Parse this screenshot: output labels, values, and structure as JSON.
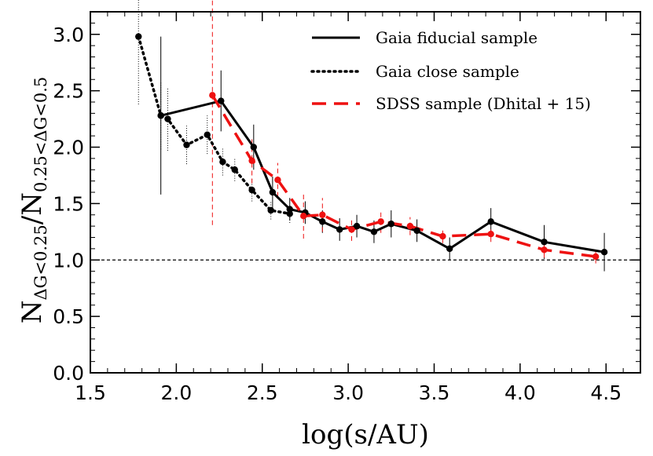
{
  "chart_data": {
    "type": "line",
    "xlabel": "log(s/AU)",
    "ylabel": "N_{ΔG<0.25} / N_{0.25<ΔG<0.5}",
    "ylabel_parts": {
      "n1": "N",
      "sub1": "ΔG<0.25",
      "slash": "/",
      "n2": "N",
      "sub2": "0.25<ΔG<0.5"
    },
    "xlim": [
      1.5,
      4.7
    ],
    "ylim": [
      0.0,
      3.2
    ],
    "x_ticks": [
      1.5,
      2.0,
      2.5,
      3.0,
      3.5,
      4.0,
      4.5
    ],
    "x_tick_labels": [
      "1.5",
      "2.0",
      "2.5",
      "3.0",
      "3.5",
      "4.0",
      "4.5"
    ],
    "y_ticks": [
      0.0,
      0.5,
      1.0,
      1.5,
      2.0,
      2.5,
      3.0
    ],
    "y_tick_labels": [
      "0.0",
      "0.5",
      "1.0",
      "1.5",
      "2.0",
      "2.5",
      "3.0"
    ],
    "reference_line": {
      "y": 1.0,
      "style": "dashed",
      "color": "#000000"
    },
    "legend_position": "top-right",
    "series": [
      {
        "name": "Gaia fiducial sample",
        "color": "#000000",
        "dash": "solid",
        "error_dash": "solid",
        "x": [
          1.91,
          2.26,
          2.45,
          2.56,
          2.66,
          2.75,
          2.85,
          2.95,
          3.05,
          3.15,
          3.25,
          3.4,
          3.59,
          3.83,
          4.14,
          4.49
        ],
        "y": [
          2.28,
          2.41,
          2.0,
          1.6,
          1.45,
          1.42,
          1.34,
          1.27,
          1.3,
          1.25,
          1.32,
          1.26,
          1.1,
          1.34,
          1.16,
          1.07
        ],
        "err": [
          0.7,
          0.27,
          0.2,
          0.14,
          0.1,
          0.1,
          0.1,
          0.1,
          0.1,
          0.1,
          0.12,
          0.1,
          0.1,
          0.12,
          0.15,
          0.17
        ]
      },
      {
        "name": "Gaia close sample",
        "color": "#000000",
        "dash": "dotted",
        "error_dash": "dotted",
        "x": [
          1.78,
          1.91,
          1.95,
          2.06,
          2.18,
          2.27,
          2.34,
          2.44,
          2.55,
          2.66
        ],
        "y": [
          2.98,
          2.28,
          2.25,
          2.02,
          2.11,
          1.87,
          1.8,
          1.62,
          1.44,
          1.41
        ],
        "err": [
          0.6,
          0.3,
          0.28,
          0.17,
          0.17,
          0.12,
          0.1,
          0.1,
          0.08,
          0.08
        ]
      },
      {
        "name": "SDSS sample (Dhital + 15)",
        "color": "#ee1111",
        "dash": "dashed",
        "error_dash": "dashed",
        "x": [
          2.21,
          2.44,
          2.59,
          2.74,
          2.85,
          3.02,
          3.19,
          3.36,
          3.55,
          3.83,
          4.14,
          4.44
        ],
        "y": [
          2.46,
          1.88,
          1.71,
          1.39,
          1.4,
          1.27,
          1.34,
          1.3,
          1.21,
          1.23,
          1.09,
          1.03
        ],
        "err": [
          1.15,
          0.2,
          0.15,
          0.2,
          0.15,
          0.1,
          0.1,
          0.08,
          0.06,
          0.07,
          0.07,
          0.06
        ]
      }
    ]
  }
}
